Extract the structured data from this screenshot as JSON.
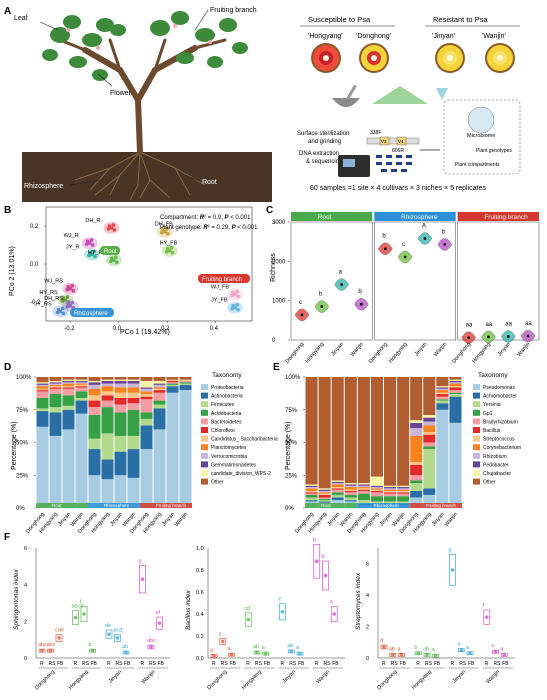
{
  "panels": {
    "A": {
      "letter": "A",
      "tree_labels": {
        "leaf": "Leaf",
        "fruiting": "Fruiting branch",
        "flower": "Flower",
        "rhizosphere": "Rhizosphere",
        "root": "Root"
      },
      "susceptible": "Susceptible to Psa",
      "resistant": "Resistant to Psa",
      "cultivars": [
        "'Hongyang'",
        "'Donghong'",
        "'Jinyan'",
        "'Wanjin'"
      ],
      "steps": [
        "Surface sterilization",
        "and grinding",
        "DNA extraction",
        "& sequencing"
      ],
      "primers": {
        "fwd": "338F",
        "v3": "V3",
        "v4": "V4",
        "rev": "806R"
      },
      "box_labels": {
        "microbiome": "Microbiome",
        "genotypes": "Plant genotypes",
        "compartments": "Plant compartments"
      },
      "samples": "60 samples =1 site × 4 cultivars × 3 niches × 5 replicates"
    },
    "B": {
      "letter": "B",
      "xlabel": "PCo 1 (19.42%)",
      "ylabel": "PCo 2 (13.01%)",
      "stat1_pre": "Compartment: ",
      "stat1_r": "R",
      "stat1_post": "² = 0.9, ",
      "stat1_p": "P",
      "stat1_end": " < 0.001",
      "stat2_pre": "Plant genotype: ",
      "stat2_r": "R",
      "stat2_post": "² = 0.29, ",
      "stat2_p": "P",
      "stat2_end": " < 0.001",
      "niche_labels": {
        "root": "Root",
        "rhizo": "Rhizosphere",
        "fb": "Fruiting branch"
      },
      "group_labels": [
        "DH_R",
        "WJ_R",
        "JY_R",
        "HY_R",
        "DH_FB",
        "HY_FB",
        "WJ_RS",
        "HY_RS",
        "DH_RS",
        "JY_RS",
        "WJ_FB",
        "JY_FB"
      ]
    },
    "C": {
      "letter": "C",
      "ylabel": "Richness",
      "strips": [
        "Root",
        "Rhizosphere",
        "Fruiting branch"
      ]
    },
    "D": {
      "letter": "D",
      "ylabel": "Percentage (%)",
      "legend_title": "Taxonomy",
      "strips": [
        "Root",
        "Rhizosphere",
        "Fruiting branch"
      ]
    },
    "E": {
      "letter": "E",
      "ylabel": "Percentage (%)",
      "legend_title": "Taxonomy",
      "strips": [
        "Root",
        "Rhizosphere",
        "Fruiting branch"
      ]
    },
    "F": {
      "letter": "F",
      "groups_text": [
        "R",
        "RS",
        "FB"
      ]
    }
  },
  "chart_data": [
    {
      "id": "B",
      "type": "scatter",
      "xlim": [
        -0.3,
        0.55
      ],
      "ylim": [
        -0.3,
        0.3
      ],
      "xticks": [
        "-0.2",
        "0.0",
        "0.2",
        "0.4"
      ],
      "yticks": [
        "-0.2",
        "0.0",
        "0.2"
      ],
      "series": [
        {
          "name": "DH_R",
          "color": "#e8464f",
          "x": -0.03,
          "y": 0.19
        },
        {
          "name": "WJ_R",
          "color": "#c44fb5",
          "x": -0.12,
          "y": 0.11
        },
        {
          "name": "JY_R",
          "color": "#2eb3a8",
          "x": -0.11,
          "y": 0.05
        },
        {
          "name": "HY_R",
          "color": "#62b94b",
          "x": -0.02,
          "y": 0.02
        },
        {
          "name": "DH_FB",
          "color": "#c9a33a",
          "x": 0.19,
          "y": 0.17
        },
        {
          "name": "HY_FB",
          "color": "#77c142",
          "x": 0.21,
          "y": 0.07
        },
        {
          "name": "WJ_RS",
          "color": "#d4478f",
          "x": -0.2,
          "y": -0.13
        },
        {
          "name": "HY_RS",
          "color": "#6e9e3f",
          "x": -0.22,
          "y": -0.19
        },
        {
          "name": "DH_RS",
          "color": "#8e6cc2",
          "x": -0.2,
          "y": -0.22
        },
        {
          "name": "JY_RS",
          "color": "#5a8fd1",
          "x": -0.24,
          "y": -0.25
        },
        {
          "name": "WJ_FB",
          "color": "#f0a3c8",
          "x": 0.48,
          "y": -0.16
        },
        {
          "name": "JY_FB",
          "color": "#5fb3e8",
          "x": 0.48,
          "y": -0.23
        }
      ]
    },
    {
      "id": "C",
      "type": "scatter",
      "ylim": [
        0,
        3000
      ],
      "yticks": [
        "0",
        "1000",
        "2000",
        "3000"
      ],
      "categories": [
        "Donghong",
        "Hongyang",
        "Jinyan",
        "Wanjin"
      ],
      "facets": [
        {
          "name": "Root",
          "values": [
            640,
            850,
            1410,
            910
          ],
          "letters": [
            "c",
            "b",
            "a",
            "b"
          ]
        },
        {
          "name": "Rhizosphere",
          "values": [
            2320,
            2110,
            2580,
            2430
          ],
          "letters": [
            "b",
            "c",
            "A",
            "b"
          ]
        },
        {
          "name": "Fruiting branch",
          "values": [
            60,
            80,
            90,
            100
          ],
          "letters": [
            "aa",
            "aa",
            "aa",
            "aa"
          ]
        }
      ]
    },
    {
      "id": "D",
      "type": "bar",
      "yticks": [
        "0%",
        "25%",
        "50%",
        "75%",
        "100%"
      ],
      "categories": [
        "Donghong",
        "Hongyang",
        "Jinyan",
        "Wanjin",
        "Donghong",
        "Hongyang",
        "Jinyan",
        "Wanjin",
        "Donghong",
        "Hongyang",
        "Jinyan",
        "Wanjin"
      ],
      "taxa": [
        "Proteobacteria",
        "Actinobacteria",
        "Firmicutes",
        "Acidobacteria",
        "Bacteroidetes",
        "Chloroflexi",
        "Candidatus_ Saccharibacteria",
        "Planctomycetes",
        "Verrucomicrobia",
        "Gemmatimonadetes",
        "candidate_division_WPS-2",
        "Other"
      ],
      "colors": [
        "#a8cde3",
        "#2a6ea6",
        "#b2d98c",
        "#36a045",
        "#f39ea3",
        "#e32a2b",
        "#fcc88a",
        "#f4831f",
        "#c8b5d8",
        "#6a4596",
        "#fcf7a5",
        "#b15d2f"
      ]
    },
    {
      "id": "E",
      "type": "bar",
      "yticks": [
        "0%",
        "25%",
        "50%",
        "75%",
        "100%"
      ],
      "categories": [
        "Donghong",
        "Hongyang",
        "Jinyan",
        "Wanjin",
        "Donghong",
        "Hongyang",
        "Jinyan",
        "Wanjin",
        "Donghong",
        "Hongyang",
        "Jinyan",
        "Wanjin"
      ],
      "taxa": [
        "Pseudomonas",
        "Achromobacter",
        "Yersinia",
        "Gp1",
        "Bradyrhizobium",
        "Bacillus",
        "Streptococcus",
        "Corynebacterium",
        "Rhizobium",
        "Pedobacter",
        "Chujaibacter",
        "Other"
      ],
      "colors": [
        "#a8cde3",
        "#2a6ea6",
        "#b2d98c",
        "#36a045",
        "#f39ea3",
        "#e32a2b",
        "#fcc88a",
        "#f4831f",
        "#c8b5d8",
        "#6a4596",
        "#fcf7a5",
        "#b15d2f"
      ]
    },
    {
      "id": "F",
      "type": "scatter",
      "categories": [
        "Donghong",
        "Hongyang",
        "Jinyan",
        "Wanjin"
      ],
      "groups": [
        "R",
        "RS",
        "FB"
      ],
      "panels": [
        {
          "ylabel": "Sphingomonas index",
          "ymax": 6,
          "yticks": [
            "0",
            "2",
            "4",
            "6"
          ],
          "values": [
            [
              0.4,
              0.4,
              1.1
            ],
            [
              2.2,
              2.4,
              0.4
            ],
            [
              1.3,
              1.1,
              0.3
            ],
            [
              4.3,
              0.6,
              1.9
            ]
          ],
          "letters": [
            [
              "abc",
              "abc",
              "cde"
            ],
            [
              "abcd",
              "f",
              "b"
            ],
            [
              "de",
              "acd",
              "ab"
            ],
            [
              "g",
              "abc",
              "ef"
            ]
          ]
        },
        {
          "ylabel": "Bacillus index",
          "ymax": 1.0,
          "yticks": [
            "0.0",
            "0.2",
            "0.4",
            "0.6",
            "0.8",
            "1.0"
          ],
          "values": [
            [
              0.02,
              0.15,
              0.03
            ],
            [
              0.35,
              0.05,
              0.04
            ],
            [
              0.42,
              0.06,
              0.04
            ],
            [
              0.88,
              0.75,
              0.4
            ]
          ],
          "letters": [
            [
              "a",
              "c",
              "a"
            ],
            [
              "cd",
              "ab",
              "a"
            ],
            [
              "e",
              "ab",
              "a"
            ],
            [
              "b",
              "b",
              "b"
            ]
          ]
        },
        {
          "ylabel": "Streptomyces index",
          "ymax": 7,
          "yticks": [
            "0",
            "2",
            "4",
            "6"
          ],
          "values": [
            [
              0.7,
              0.2,
              0.2
            ],
            [
              0.3,
              0.2,
              0.15
            ],
            [
              5.6,
              0.5,
              0.3
            ],
            [
              2.6,
              0.4,
              0.2
            ]
          ],
          "letters": [
            [
              "d",
              "ab",
              "a"
            ],
            [
              "b",
              "ab",
              "a"
            ],
            [
              "g",
              "a",
              "a"
            ],
            [
              "f",
              "c",
              "a"
            ]
          ]
        }
      ]
    }
  ]
}
